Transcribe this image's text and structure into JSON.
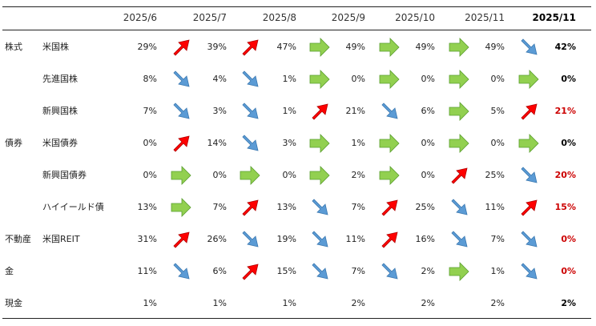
{
  "colors": {
    "up": "#ff0000",
    "down": "#5b9bd5",
    "flat": "#92d050",
    "highlight": "#cc0000",
    "normal": "#000000"
  },
  "columns": [
    "2025/6",
    "2025/7",
    "2025/8",
    "2025/9",
    "2025/10",
    "2025/11"
  ],
  "final_column": "2025/11",
  "rows": [
    {
      "category": "株式",
      "name": "米国株",
      "values": [
        "29%",
        "39%",
        "47%",
        "49%",
        "49%",
        "49%"
      ],
      "arrows": [
        "up",
        "up",
        "flat",
        "flat",
        "flat",
        "down"
      ],
      "final": "42%",
      "final_highlight": false
    },
    {
      "category": "",
      "name": "先進国株",
      "values": [
        "8%",
        "4%",
        "1%",
        "0%",
        "0%",
        "0%"
      ],
      "arrows": [
        "down",
        "down",
        "flat",
        "flat",
        "flat",
        "flat"
      ],
      "final": "0%",
      "final_highlight": false
    },
    {
      "category": "",
      "name": "新興国株",
      "values": [
        "7%",
        "3%",
        "1%",
        "21%",
        "6%",
        "5%"
      ],
      "arrows": [
        "down",
        "down",
        "up",
        "down",
        "flat",
        "up"
      ],
      "final": "21%",
      "final_highlight": true
    },
    {
      "category": "債券",
      "name": "米国債券",
      "values": [
        "0%",
        "14%",
        "3%",
        "1%",
        "0%",
        "0%"
      ],
      "arrows": [
        "up",
        "down",
        "flat",
        "flat",
        "flat",
        "flat"
      ],
      "final": "0%",
      "final_highlight": false
    },
    {
      "category": "",
      "name": "新興国債券",
      "values": [
        "0%",
        "0%",
        "0%",
        "2%",
        "0%",
        "25%"
      ],
      "arrows": [
        "flat",
        "flat",
        "flat",
        "flat",
        "up",
        "down"
      ],
      "final": "20%",
      "final_highlight": true
    },
    {
      "category": "",
      "name": "ハイイールド債",
      "values": [
        "13%",
        "7%",
        "13%",
        "7%",
        "25%",
        "11%"
      ],
      "arrows": [
        "flat",
        "up",
        "down",
        "up",
        "down",
        "up"
      ],
      "final": "15%",
      "final_highlight": true
    },
    {
      "category": "不動産",
      "name": "米国REIT",
      "values": [
        "31%",
        "26%",
        "19%",
        "11%",
        "16%",
        "7%"
      ],
      "arrows": [
        "up",
        "down",
        "down",
        "up",
        "down",
        "down"
      ],
      "final": "0%",
      "final_highlight": true
    },
    {
      "category": "金",
      "name": "",
      "values": [
        "11%",
        "6%",
        "15%",
        "7%",
        "2%",
        "1%"
      ],
      "arrows": [
        "down",
        "up",
        "down",
        "down",
        "flat",
        "down"
      ],
      "final": "0%",
      "final_highlight": true
    },
    {
      "category": "現金",
      "name": "",
      "values": [
        "1%",
        "1%",
        "1%",
        "2%",
        "2%",
        "2%"
      ],
      "arrows": [
        "",
        "",
        "",
        "",
        "",
        ""
      ],
      "final": "2%",
      "final_highlight": false
    }
  ]
}
